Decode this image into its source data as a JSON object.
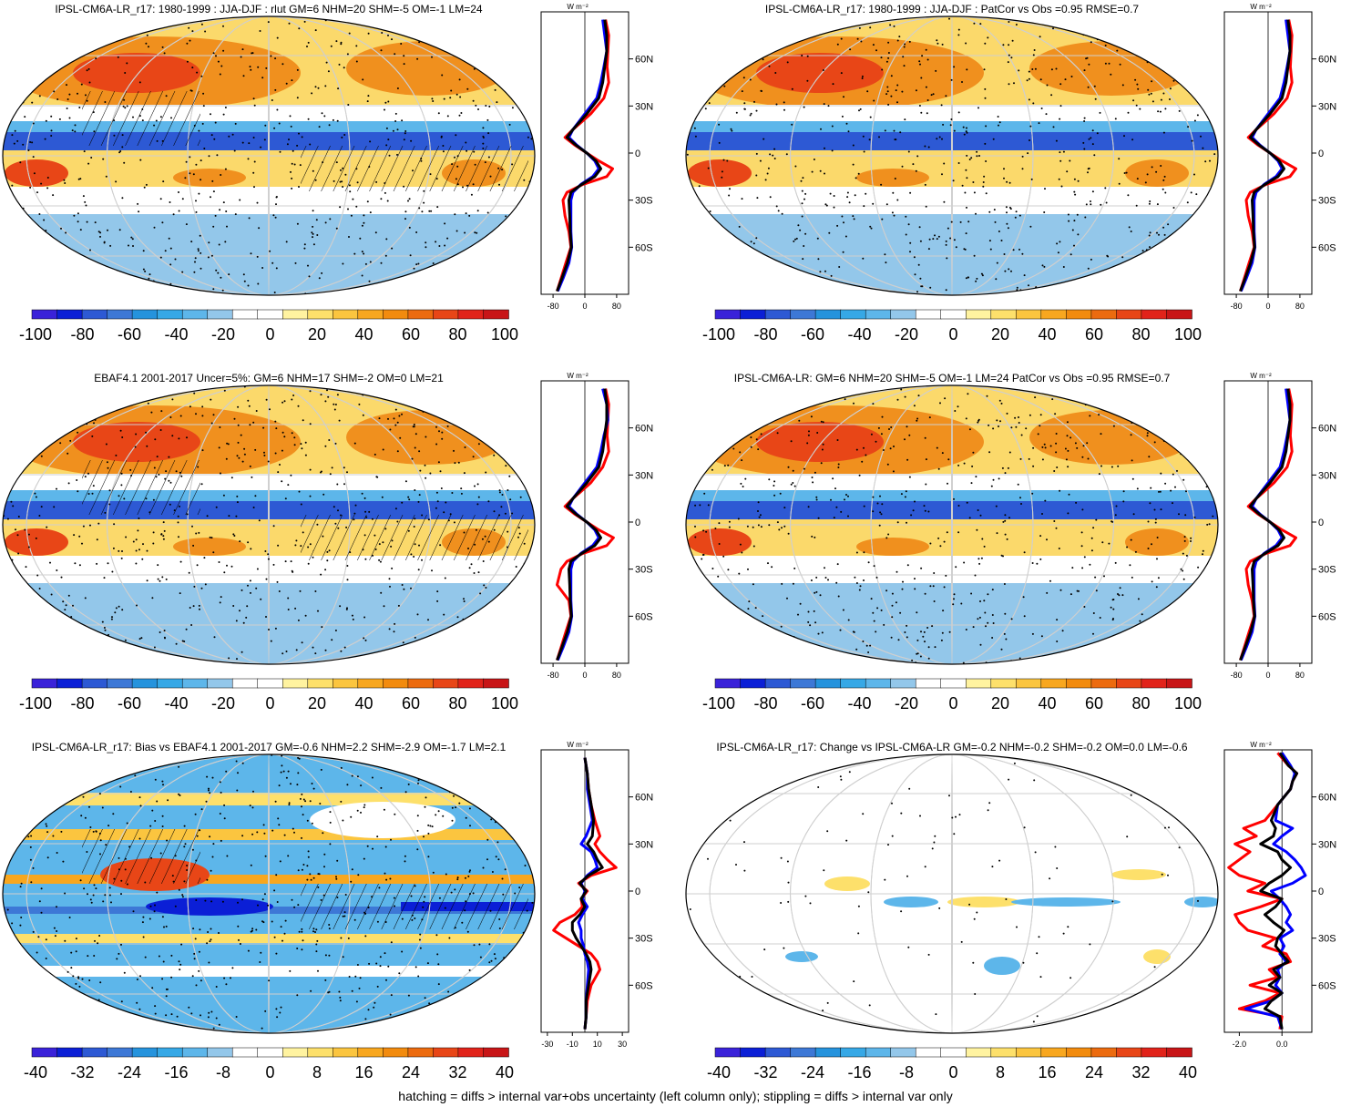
{
  "colors": {
    "scale": [
      "#3a22d9",
      "#0b1fd6",
      "#2d59d4",
      "#3d78d6",
      "#2593dd",
      "#36a8e6",
      "#5db6ea",
      "#93c7ea",
      "#ffffff",
      "#ffffff",
      "#fff3a0",
      "#fde06b",
      "#fbc53f",
      "#f8a71f",
      "#f28b0e",
      "#ec6b0f",
      "#e84617",
      "#e1231a",
      "#c81517"
    ],
    "ocean_pos": "#fbd96b",
    "land_pos": "#f0901e",
    "neg": "#5db6ea",
    "neg_dark": "#2d59d4",
    "line_red": "#ff0000",
    "line_blue": "#0000ff",
    "line_black": "#000000"
  },
  "panels": [
    {
      "title": "IPSL-CM6A-LR_r17: 1980-1999 : JJA-DJF : rlut GM=6 NHM=20 SHM=-5 OM=-1 LM=24",
      "colorbar_labels": [
        "-100",
        "-80",
        "-60",
        "-40",
        "-20",
        "0",
        "20",
        "40",
        "60",
        "80",
        "100"
      ],
      "profile_unit": "W m⁻²",
      "lat_labels": [
        "60N",
        "30N",
        "0",
        "30S",
        "60S"
      ],
      "x_ticks": [
        "-80",
        "0",
        "80"
      ],
      "hatching": true
    },
    {
      "title": "IPSL-CM6A-LR_r17: 1980-1999 : JJA-DJF : PatCor vs Obs =0.95 RMSE=0.7",
      "colorbar_labels": [
        "-100",
        "-80",
        "-60",
        "-40",
        "-20",
        "0",
        "20",
        "40",
        "60",
        "80",
        "100"
      ],
      "profile_unit": "W m⁻²",
      "lat_labels": [
        "60N",
        "30N",
        "0",
        "30S",
        "60S"
      ],
      "x_ticks": [
        "-80",
        "0",
        "80"
      ],
      "hatching": false
    },
    {
      "title": "EBAF4.1 2001-2017 Uncer=5%: GM=6 NHM=17 SHM=-2 OM=0 LM=21",
      "colorbar_labels": [
        "-100",
        "-80",
        "-60",
        "-40",
        "-20",
        "0",
        "20",
        "40",
        "60",
        "80",
        "100"
      ],
      "profile_unit": "W m⁻²",
      "lat_labels": [
        "60N",
        "30N",
        "0",
        "30S",
        "60S"
      ],
      "x_ticks": [
        "-80",
        "0",
        "80"
      ],
      "hatching": true
    },
    {
      "title": "IPSL-CM6A-LR: GM=6 NHM=20 SHM=-5 OM=-1 LM=24 PatCor vs Obs =0.95 RMSE=0.7",
      "colorbar_labels": [
        "-100",
        "-80",
        "-60",
        "-40",
        "-20",
        "0",
        "20",
        "40",
        "60",
        "80",
        "100"
      ],
      "profile_unit": "W m⁻²",
      "lat_labels": [
        "60N",
        "30N",
        "0",
        "30S",
        "60S"
      ],
      "x_ticks": [
        "-80",
        "0",
        "80"
      ],
      "hatching": false
    },
    {
      "title": "IPSL-CM6A-LR_r17: Bias vs EBAF4.1 2001-2017 GM=-0.6 NHM=2.2 SHM=-2.9 OM=-1.7 LM=2.1",
      "colorbar_labels": [
        "-40",
        "-32",
        "-24",
        "-16",
        "-8",
        "0",
        "8",
        "16",
        "24",
        "32",
        "40"
      ],
      "profile_unit": "W m⁻²",
      "lat_labels": [
        "60N",
        "30N",
        "0",
        "30S",
        "60S"
      ],
      "x_ticks": [
        "-30",
        "-10",
        "10",
        "30"
      ],
      "hatching": true
    },
    {
      "title": "IPSL-CM6A-LR_r17: Change vs IPSL-CM6A-LR GM=-0.2 NHM=-0.2 SHM=-0.2 OM=0.0 LM=-0.6",
      "colorbar_labels": [
        "-40",
        "-32",
        "-24",
        "-16",
        "-8",
        "0",
        "8",
        "16",
        "24",
        "32",
        "40"
      ],
      "profile_unit": "W m⁻²",
      "lat_labels": [
        "60N",
        "30N",
        "0",
        "30S",
        "60S"
      ],
      "x_ticks": [
        "-2.0",
        "0.0"
      ],
      "hatching": false
    }
  ],
  "footer": "hatching = diffs > internal var+obs uncertainty (left column only); stippling = diffs > internal var only",
  "chart_data": [
    {
      "type": "line",
      "title": "IPSL-CM6A-LR_r17: 1980-1999 : JJA-DJF : rlut GM=6 NHM=20 SHM=-5 OM=-1 LM=24",
      "xlabel": "W m⁻²",
      "ylabel": "",
      "xlim": [
        -110,
        110
      ],
      "ylim": [
        -90,
        90
      ],
      "y": [
        85,
        75,
        65,
        55,
        45,
        35,
        25,
        15,
        10,
        5,
        0,
        -5,
        -10,
        -15,
        -20,
        -25,
        -30,
        -40,
        -50,
        -60,
        -70,
        -80,
        -88
      ],
      "series": [
        {
          "color": "#ff0000",
          "values": [
            52,
            60,
            58,
            56,
            60,
            48,
            15,
            -30,
            -50,
            -25,
            5,
            35,
            70,
            55,
            -5,
            -45,
            -55,
            -50,
            -40,
            -35,
            -48,
            -60,
            -70
          ]
        },
        {
          "color": "#0000ff",
          "values": [
            45,
            50,
            55,
            48,
            40,
            30,
            0,
            -30,
            -40,
            -20,
            5,
            25,
            35,
            20,
            -10,
            -30,
            -35,
            -35,
            -35,
            -33,
            -40,
            -55,
            -68
          ]
        },
        {
          "color": "#000000",
          "values": [
            50,
            55,
            55,
            50,
            45,
            35,
            5,
            -30,
            -45,
            -22,
            5,
            28,
            40,
            25,
            -8,
            -35,
            -40,
            -38,
            -37,
            -34,
            -44,
            -58,
            -70
          ]
        }
      ]
    },
    {
      "type": "line",
      "title": "IPSL-CM6A-LR_r17: 1980-1999 : JJA-DJF : PatCor vs Obs =0.95 RMSE=0.7",
      "xlabel": "W m⁻²",
      "ylabel": "",
      "xlim": [
        -110,
        110
      ],
      "ylim": [
        -90,
        90
      ],
      "y": [
        85,
        75,
        65,
        55,
        45,
        35,
        25,
        15,
        10,
        5,
        0,
        -5,
        -10,
        -15,
        -20,
        -25,
        -30,
        -40,
        -50,
        -60,
        -70,
        -80,
        -88
      ],
      "series": [
        {
          "color": "#ff0000",
          "values": [
            52,
            60,
            58,
            56,
            60,
            48,
            15,
            -30,
            -50,
            -25,
            5,
            35,
            70,
            55,
            -5,
            -45,
            -55,
            -50,
            -40,
            -35,
            -48,
            -60,
            -70
          ]
        },
        {
          "color": "#0000ff",
          "values": [
            45,
            50,
            55,
            48,
            40,
            30,
            0,
            -30,
            -40,
            -20,
            5,
            25,
            35,
            20,
            -10,
            -30,
            -35,
            -35,
            -35,
            -33,
            -40,
            -55,
            -68
          ]
        },
        {
          "color": "#000000",
          "values": [
            50,
            55,
            55,
            50,
            45,
            35,
            5,
            -30,
            -45,
            -22,
            5,
            28,
            40,
            25,
            -8,
            -35,
            -40,
            -38,
            -37,
            -34,
            -44,
            -58,
            -70
          ]
        }
      ]
    },
    {
      "type": "line",
      "title": "EBAF4.1 2001-2017 Uncer=5%: GM=6 NHM=17 SHM=-2 OM=0 LM=21",
      "xlabel": "W m⁻²",
      "ylabel": "",
      "xlim": [
        -110,
        110
      ],
      "ylim": [
        -90,
        90
      ],
      "y": [
        85,
        75,
        65,
        55,
        45,
        35,
        25,
        15,
        10,
        5,
        0,
        -5,
        -10,
        -15,
        -20,
        -25,
        -30,
        -40,
        -50,
        -60,
        -70,
        -80,
        -88
      ],
      "series": [
        {
          "color": "#ff0000",
          "values": [
            52,
            60,
            58,
            56,
            60,
            45,
            15,
            -30,
            -50,
            -25,
            5,
            35,
            72,
            55,
            -5,
            -45,
            -60,
            -70,
            -40,
            -35,
            -48,
            -60,
            -70
          ]
        },
        {
          "color": "#0000ff",
          "values": [
            45,
            55,
            58,
            48,
            40,
            30,
            0,
            -30,
            -40,
            -20,
            5,
            25,
            35,
            20,
            -10,
            -30,
            -35,
            -35,
            -35,
            -33,
            -40,
            -55,
            -68
          ]
        },
        {
          "color": "#000000",
          "values": [
            50,
            55,
            55,
            50,
            45,
            35,
            5,
            -30,
            -45,
            -22,
            5,
            28,
            40,
            25,
            -8,
            -35,
            -40,
            -38,
            -37,
            -34,
            -44,
            -58,
            -70
          ]
        }
      ]
    },
    {
      "type": "line",
      "title": "IPSL-CM6A-LR: GM=6 NHM=20 SHM=-5 OM=-1 LM=24 PatCor vs Obs =0.95 RMSE=0.7",
      "xlabel": "W m⁻²",
      "ylabel": "",
      "xlim": [
        -110,
        110
      ],
      "ylim": [
        -90,
        90
      ],
      "y": [
        85,
        75,
        65,
        55,
        45,
        35,
        25,
        15,
        10,
        5,
        0,
        -5,
        -10,
        -15,
        -20,
        -25,
        -30,
        -40,
        -50,
        -60,
        -70,
        -80,
        -88
      ],
      "series": [
        {
          "color": "#ff0000",
          "values": [
            52,
            60,
            58,
            56,
            60,
            48,
            15,
            -30,
            -50,
            -25,
            5,
            35,
            70,
            55,
            -5,
            -45,
            -55,
            -50,
            -40,
            -35,
            -48,
            -60,
            -70
          ]
        },
        {
          "color": "#0000ff",
          "values": [
            45,
            50,
            55,
            48,
            40,
            30,
            0,
            -30,
            -40,
            -20,
            5,
            25,
            35,
            20,
            -10,
            -30,
            -35,
            -35,
            -35,
            -33,
            -40,
            -55,
            -68
          ]
        },
        {
          "color": "#000000",
          "values": [
            50,
            55,
            55,
            50,
            45,
            35,
            5,
            -30,
            -45,
            -22,
            5,
            28,
            40,
            25,
            -8,
            -35,
            -40,
            -38,
            -37,
            -34,
            -44,
            -58,
            -70
          ]
        }
      ]
    },
    {
      "type": "line",
      "title": "IPSL-CM6A-LR_r17: Bias vs EBAF4.1 2001-2017 GM=-0.6 NHM=2.2 SHM=-2.9 OM=-1.7 LM=2.1",
      "xlabel": "W m⁻²",
      "ylabel": "",
      "xlim": [
        -35,
        35
      ],
      "ylim": [
        -90,
        90
      ],
      "y": [
        85,
        75,
        65,
        55,
        45,
        35,
        30,
        25,
        20,
        15,
        10,
        5,
        0,
        -5,
        -10,
        -15,
        -20,
        -25,
        -30,
        -35,
        -40,
        -45,
        -50,
        -60,
        -70,
        -80,
        -88
      ],
      "series": [
        {
          "color": "#ff0000",
          "values": [
            0,
            2,
            3,
            5,
            8,
            12,
            8,
            12,
            18,
            25,
            5,
            -5,
            2,
            -3,
            -2,
            -8,
            -20,
            -25,
            -15,
            -5,
            5,
            10,
            12,
            5,
            2,
            1,
            0
          ]
        },
        {
          "color": "#0000ff",
          "values": [
            0,
            2,
            2,
            4,
            6,
            1,
            -3,
            5,
            8,
            10,
            2,
            -3,
            0,
            -2,
            2,
            -2,
            -5,
            -3,
            -3,
            -1,
            0,
            2,
            3,
            2,
            1,
            1,
            0
          ]
        },
        {
          "color": "#000000",
          "values": [
            0,
            2,
            3,
            5,
            7,
            6,
            2,
            7,
            10,
            14,
            3,
            -4,
            1,
            -3,
            0,
            -4,
            -10,
            -10,
            -7,
            -3,
            1,
            4,
            5,
            3,
            1,
            1,
            0
          ]
        }
      ]
    },
    {
      "type": "line",
      "title": "IPSL-CM6A-LR_r17: Change vs IPSL-CM6A-LR GM=-0.2 NHM=-0.2 SHM=-0.2 OM=0.0 LM=-0.6",
      "xlabel": "W m⁻²",
      "ylabel": "",
      "xlim": [
        -2.7,
        1.4
      ],
      "ylim": [
        -90,
        90
      ],
      "y": [
        88,
        80,
        75,
        70,
        65,
        55,
        45,
        40,
        35,
        30,
        25,
        20,
        15,
        10,
        5,
        0,
        -5,
        -10,
        -15,
        -20,
        -25,
        -30,
        -35,
        -40,
        -45,
        -50,
        -55,
        -60,
        -65,
        -70,
        -75,
        -80,
        -88
      ],
      "series": [
        {
          "color": "#ff0000",
          "values": [
            -0.2,
            0.3,
            0.7,
            0.5,
            0.4,
            -0.2,
            -0.8,
            -1.8,
            -1.2,
            -2.2,
            -1.5,
            -2.0,
            -2.5,
            -2.0,
            -0.8,
            -1.6,
            0.0,
            -1.0,
            -2.2,
            -2.0,
            -1.6,
            -0.3,
            -0.9,
            0.2,
            0.4,
            -0.6,
            -0.2,
            -1.5,
            -0.1,
            -0.8,
            -2.0,
            0.0,
            -0.1
          ]
        },
        {
          "color": "#0000ff",
          "values": [
            0.0,
            0.4,
            0.6,
            0.5,
            0.4,
            -0.2,
            -0.3,
            0.5,
            0.0,
            -0.4,
            0.2,
            0.6,
            0.9,
            1.1,
            0.5,
            -0.5,
            -0.1,
            0.2,
            0.4,
            0.2,
            0.5,
            -0.1,
            0.1,
            -0.1,
            0.2,
            -0.2,
            -0.1,
            -0.3,
            0.0,
            -0.5,
            -1.7,
            -0.2,
            0.0
          ]
        },
        {
          "color": "#000000",
          "values": [
            -0.1,
            0.3,
            0.7,
            0.5,
            0.4,
            -0.2,
            -0.5,
            -0.3,
            -0.4,
            -1.0,
            -0.2,
            0.0,
            0.4,
            0.0,
            -0.6,
            -1.0,
            0.0,
            -0.3,
            -0.8,
            -0.4,
            0.1,
            -0.2,
            -0.3,
            0.0,
            0.3,
            -0.4,
            -0.1,
            -0.6,
            0.0,
            -0.5,
            -0.8,
            -0.1,
            0.0
          ]
        }
      ]
    }
  ]
}
